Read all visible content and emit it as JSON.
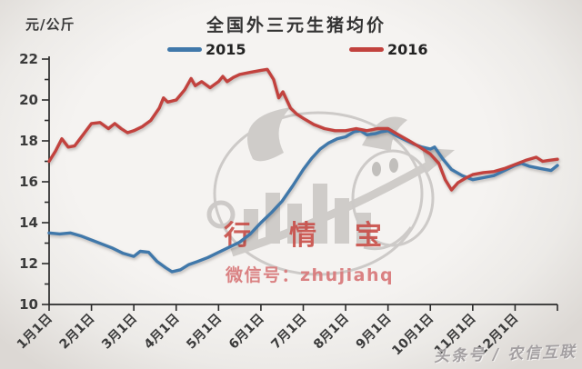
{
  "title": "全国外三元生猪均价",
  "unit_label": "元/公斤",
  "legend": [
    {
      "label": "2015",
      "color": "#4078aa"
    },
    {
      "label": "2016",
      "color": "#c2423e"
    }
  ],
  "watermark": {
    "brand": "行情宝",
    "wechat": "微信号：zhujiahq",
    "footer": "头条号 / 农信互联"
  },
  "colors": {
    "background": "#f3f1ef",
    "axis": "#2b2b2b",
    "tick_text": "#3b3b3b",
    "watermark_gray": "#c7c4c1",
    "watermark_red": "#c84a44",
    "watermark_pink": "#d97b7d"
  },
  "chart_data": {
    "type": "line",
    "title": "全国外三元生猪均价",
    "xlabel": "",
    "ylabel": "元/公斤",
    "ylim": [
      10,
      22
    ],
    "y_ticks": [
      10,
      11,
      12,
      13,
      14,
      15,
      16,
      17,
      18,
      19,
      20,
      21,
      22
    ],
    "y_major_ticks": [
      10,
      12,
      14,
      16,
      18,
      20,
      22
    ],
    "x_tick_labels": [
      "1月1日",
      "2月1日",
      "3月1日",
      "4月1日",
      "5月1日",
      "6月1日",
      "7月1日",
      "8月1日",
      "9月1日",
      "10月1日",
      "11月1日",
      "12月1日"
    ],
    "x_unit": "month-index (0 = 1月1日, 12 = 年末)",
    "grid": false,
    "legend_position": "top",
    "series": [
      {
        "name": "2015",
        "color": "#4078aa",
        "points": [
          [
            0,
            13.5
          ],
          [
            0.25,
            13.45
          ],
          [
            0.5,
            13.5
          ],
          [
            0.75,
            13.35
          ],
          [
            1,
            13.15
          ],
          [
            1.25,
            12.95
          ],
          [
            1.5,
            12.75
          ],
          [
            1.75,
            12.5
          ],
          [
            2,
            12.35
          ],
          [
            2.15,
            12.6
          ],
          [
            2.35,
            12.55
          ],
          [
            2.55,
            12.1
          ],
          [
            2.75,
            11.8
          ],
          [
            2.9,
            11.6
          ],
          [
            3.1,
            11.7
          ],
          [
            3.3,
            11.95
          ],
          [
            3.5,
            12.1
          ],
          [
            3.75,
            12.3
          ],
          [
            4,
            12.55
          ],
          [
            4.25,
            12.8
          ],
          [
            4.5,
            13.05
          ],
          [
            4.75,
            13.45
          ],
          [
            5,
            14.0
          ],
          [
            5.25,
            14.5
          ],
          [
            5.5,
            15.05
          ],
          [
            5.75,
            15.8
          ],
          [
            6,
            16.6
          ],
          [
            6.2,
            17.15
          ],
          [
            6.4,
            17.6
          ],
          [
            6.6,
            17.9
          ],
          [
            6.8,
            18.1
          ],
          [
            7,
            18.2
          ],
          [
            7.2,
            18.45
          ],
          [
            7.35,
            18.5
          ],
          [
            7.5,
            18.3
          ],
          [
            7.7,
            18.35
          ],
          [
            7.85,
            18.45
          ],
          [
            8,
            18.5
          ],
          [
            8.2,
            18.25
          ],
          [
            8.4,
            18.05
          ],
          [
            8.6,
            17.85
          ],
          [
            8.8,
            17.7
          ],
          [
            9,
            17.6
          ],
          [
            9.1,
            17.7
          ],
          [
            9.3,
            17.1
          ],
          [
            9.5,
            16.6
          ],
          [
            9.75,
            16.3
          ],
          [
            10,
            16.1
          ],
          [
            10.25,
            16.2
          ],
          [
            10.5,
            16.3
          ],
          [
            10.75,
            16.55
          ],
          [
            11,
            16.8
          ],
          [
            11.15,
            16.9
          ],
          [
            11.35,
            16.75
          ],
          [
            11.6,
            16.65
          ],
          [
            11.85,
            16.55
          ],
          [
            12,
            16.8
          ]
        ]
      },
      {
        "name": "2016",
        "color": "#c2423e",
        "points": [
          [
            0,
            17.0
          ],
          [
            0.15,
            17.5
          ],
          [
            0.3,
            18.1
          ],
          [
            0.45,
            17.7
          ],
          [
            0.6,
            17.75
          ],
          [
            0.8,
            18.3
          ],
          [
            1,
            18.85
          ],
          [
            1.2,
            18.9
          ],
          [
            1.4,
            18.6
          ],
          [
            1.55,
            18.85
          ],
          [
            1.7,
            18.6
          ],
          [
            1.85,
            18.4
          ],
          [
            2,
            18.5
          ],
          [
            2.2,
            18.7
          ],
          [
            2.4,
            19.0
          ],
          [
            2.6,
            19.6
          ],
          [
            2.7,
            20.1
          ],
          [
            2.8,
            19.9
          ],
          [
            3,
            20.0
          ],
          [
            3.2,
            20.5
          ],
          [
            3.35,
            21.05
          ],
          [
            3.45,
            20.7
          ],
          [
            3.6,
            20.9
          ],
          [
            3.8,
            20.6
          ],
          [
            4,
            20.9
          ],
          [
            4.1,
            21.15
          ],
          [
            4.2,
            20.9
          ],
          [
            4.35,
            21.1
          ],
          [
            4.5,
            21.25
          ],
          [
            4.75,
            21.35
          ],
          [
            5,
            21.45
          ],
          [
            5.15,
            21.5
          ],
          [
            5.3,
            21.0
          ],
          [
            5.42,
            20.1
          ],
          [
            5.52,
            20.4
          ],
          [
            5.7,
            19.6
          ],
          [
            5.85,
            19.3
          ],
          [
            6,
            19.1
          ],
          [
            6.25,
            18.8
          ],
          [
            6.5,
            18.6
          ],
          [
            6.75,
            18.5
          ],
          [
            7,
            18.5
          ],
          [
            7.25,
            18.6
          ],
          [
            7.5,
            18.5
          ],
          [
            7.75,
            18.6
          ],
          [
            8,
            18.6
          ],
          [
            8.25,
            18.3
          ],
          [
            8.5,
            18.0
          ],
          [
            8.75,
            17.7
          ],
          [
            9,
            17.35
          ],
          [
            9.2,
            16.9
          ],
          [
            9.35,
            16.1
          ],
          [
            9.5,
            15.6
          ],
          [
            9.65,
            15.95
          ],
          [
            9.85,
            16.2
          ],
          [
            10,
            16.35
          ],
          [
            10.25,
            16.45
          ],
          [
            10.5,
            16.5
          ],
          [
            10.75,
            16.65
          ],
          [
            11,
            16.85
          ],
          [
            11.25,
            17.05
          ],
          [
            11.5,
            17.2
          ],
          [
            11.65,
            17.0
          ],
          [
            11.8,
            17.05
          ],
          [
            12,
            17.1
          ]
        ]
      }
    ]
  }
}
